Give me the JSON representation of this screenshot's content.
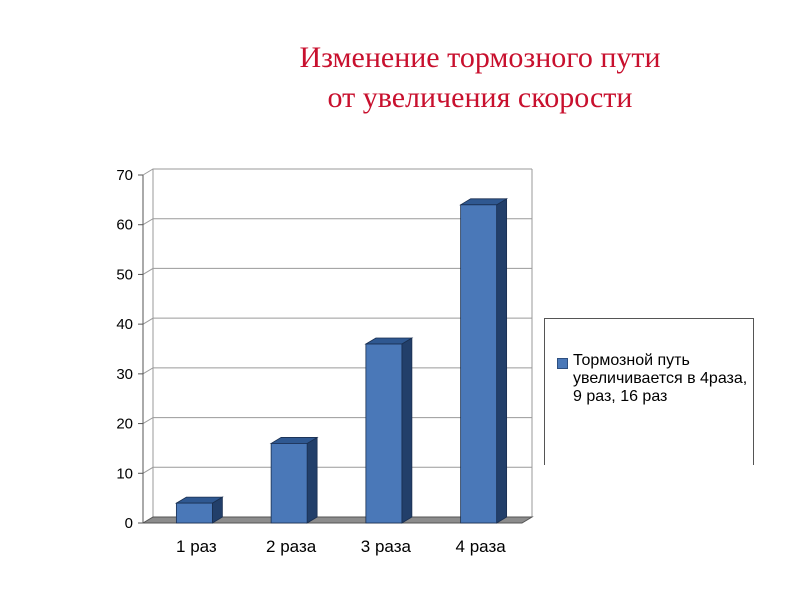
{
  "chart_data": {
    "type": "bar",
    "title": [
      "Изменение тормозного пути",
      "от увеличения скорости"
    ],
    "categories": [
      "1 раз",
      "2 раза",
      "3 раза",
      "4 раза"
    ],
    "series": [
      {
        "name": "Тормозной путь увеличивается в 4раза, 9 раз, 16 раз",
        "values": [
          4,
          16,
          36,
          64
        ]
      }
    ],
    "ylim": [
      0,
      70
    ],
    "yticks": [
      "0",
      "10",
      "20",
      "30",
      "40",
      "50",
      "60",
      "70"
    ],
    "grid": true,
    "legend_position": "right",
    "colors": {
      "bar_front": "#4a78b8",
      "bar_side": "#223f6a",
      "bar_top": "#2f5891",
      "floor": "#8c8c8c"
    }
  }
}
